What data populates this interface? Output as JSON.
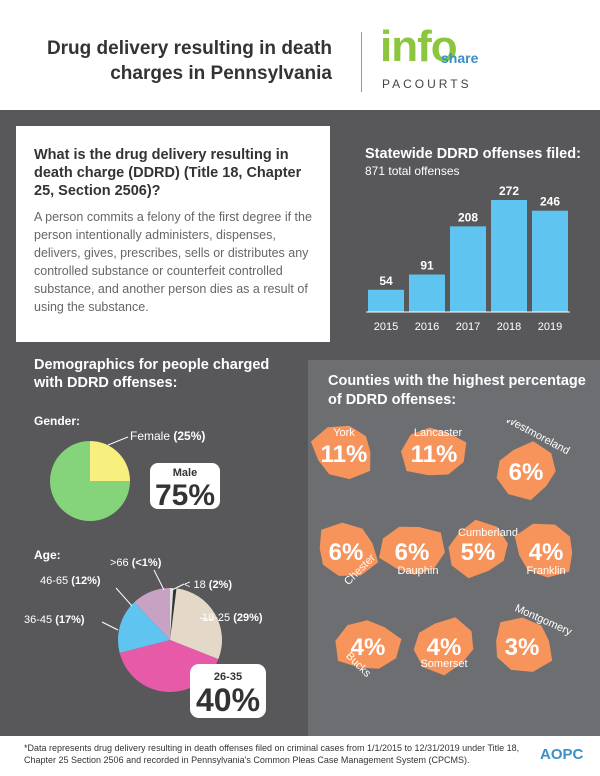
{
  "header": {
    "title_line1": "Drug delivery resulting in death",
    "title_line2": "charges in Pennsylvania",
    "logo_info": "info",
    "logo_share": "share",
    "logo_pacourts": "PACOURTS"
  },
  "question": {
    "title": "What is the drug delivery resulting in death charge (DDRD) (Title 18, Chapter 25, Section 2506)?",
    "body": "A person commits a felony of the first degree if the person intentionally administers, dispenses, delivers, gives, prescribes, sells or distributes any controlled substance or counterfeit controlled substance, and another person dies as a result of using the substance."
  },
  "demographics": {
    "title": "Demographics for people charged with DDRD offenses:",
    "gender_label": "Gender:",
    "age_label": "Age:"
  },
  "counties_title": "Counties with the highest percentage of DDRD offenses:",
  "footer": {
    "note": "*Data represents drug delivery resulting in death offenses filed on criminal cases from 1/1/2015 to 12/31/2019 under Title 18, Chapter 25 Section 2506 and recorded in Pennsylvania's Common Pleas Case Management System (CPCMS).",
    "logo": "AOPC"
  },
  "colors": {
    "bar": "#5fc4ef",
    "female": "#f7ef7e",
    "male": "#85d47b",
    "county": "#f7945c",
    "age_19_25": "#e4d9c8",
    "age_26_35": "#e65aa8",
    "age_36_45": "#5fc4ef",
    "age_46_65": "#c7a2c2",
    "age_over_66": "#e0e0e0",
    "age_under_18": "#333333"
  },
  "chart_data": [
    {
      "type": "bar",
      "title": "Statewide DDRD offenses filed:",
      "subtitle": "871 total offenses",
      "categories": [
        "2015",
        "2016",
        "2017",
        "2018",
        "2019"
      ],
      "values": [
        54,
        91,
        208,
        272,
        246
      ],
      "ylim": [
        0,
        272
      ]
    },
    {
      "type": "pie",
      "title": "Gender:",
      "slices": [
        {
          "label": "Female",
          "value": 25,
          "display": "(25%)"
        },
        {
          "label": "Male",
          "value": 75,
          "display": "75%"
        }
      ]
    },
    {
      "type": "pie",
      "title": "Age:",
      "slices": [
        {
          "label": "< 18",
          "value": 2,
          "display": "(2%)"
        },
        {
          "label": "19-25",
          "value": 29,
          "display": "(29%)"
        },
        {
          "label": "26-35",
          "value": 40,
          "display": "40%"
        },
        {
          "label": "36-45",
          "value": 17,
          "display": "(17%)"
        },
        {
          "label": "46-65",
          "value": 12,
          "display": "(12%)"
        },
        {
          "label": ">66",
          "value": 1,
          "display": "(<1%)"
        }
      ]
    },
    {
      "type": "table",
      "title": "Counties with the highest percentage of DDRD offenses:",
      "rows": [
        {
          "county": "York",
          "value": 11,
          "display": "11%"
        },
        {
          "county": "Lancaster",
          "value": 11,
          "display": "11%"
        },
        {
          "county": "Westmoreland",
          "value": 6,
          "display": "6%"
        },
        {
          "county": "Chester",
          "value": 6,
          "display": "6%"
        },
        {
          "county": "Dauphin",
          "value": 6,
          "display": "6%"
        },
        {
          "county": "Cumberland",
          "value": 5,
          "display": "5%"
        },
        {
          "county": "Franklin",
          "value": 4,
          "display": "4%"
        },
        {
          "county": "Bucks",
          "value": 4,
          "display": "4%"
        },
        {
          "county": "Somerset",
          "value": 4,
          "display": "4%"
        },
        {
          "county": "Montgomery",
          "value": 3,
          "display": "3%"
        }
      ]
    }
  ]
}
